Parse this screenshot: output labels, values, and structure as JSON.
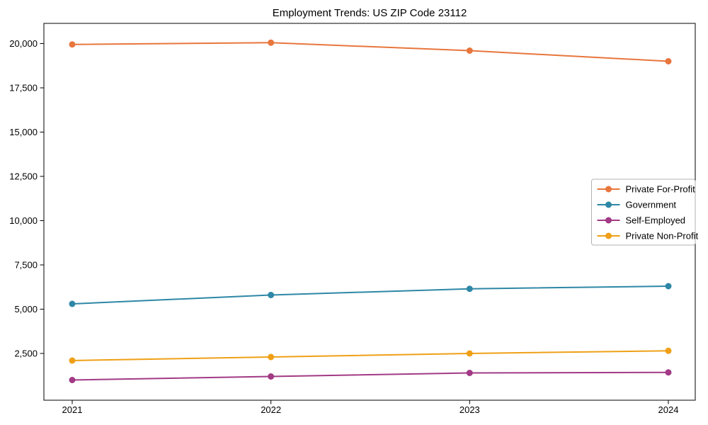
{
  "chart_data": {
    "type": "line",
    "title": "Employment Trends: US ZIP Code 23112",
    "x": [
      2021,
      2022,
      2023,
      2024
    ],
    "xtick_labels": [
      "2021",
      "2022",
      "2023",
      "2024"
    ],
    "series": [
      {
        "name": "Private For-Profit",
        "color": "#e8763d",
        "values": [
          19950,
          20050,
          19600,
          19000
        ]
      },
      {
        "name": "Government",
        "color": "#2e87a6",
        "values": [
          5300,
          5800,
          6150,
          6300
        ]
      },
      {
        "name": "Self-Employed",
        "color": "#a23a85",
        "values": [
          1000,
          1200,
          1400,
          1430
        ]
      },
      {
        "name": "Private Non-Profit",
        "color": "#efa017",
        "values": [
          2100,
          2300,
          2500,
          2650
        ]
      }
    ],
    "yticks": [
      2500,
      5000,
      7500,
      10000,
      12500,
      15000,
      17500,
      20000
    ],
    "ylim": [
      -140,
      21140
    ],
    "grid": false,
    "legend_position": "center-right",
    "marker": "circle",
    "frame_color": "#000000",
    "legend_border_color": "#b3b3b3",
    "xlabel": "",
    "ylabel": ""
  }
}
